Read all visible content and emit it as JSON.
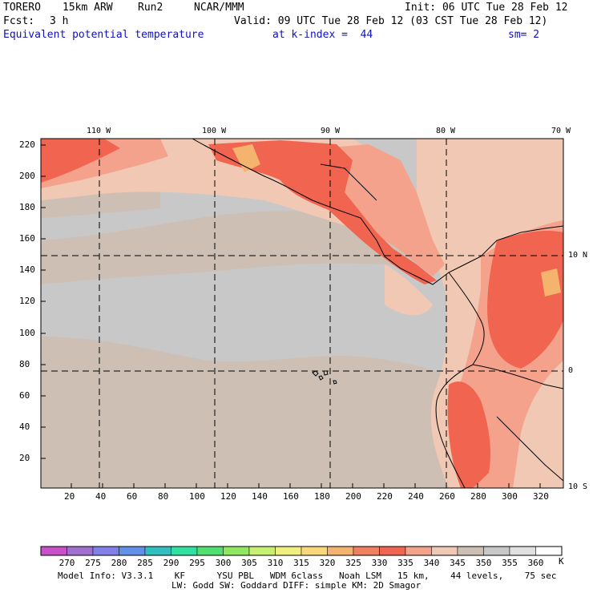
{
  "header": {
    "model": "TORERO",
    "resolution": "15km ARW",
    "run": "Run2",
    "org": "NCAR/MMM",
    "init": "Init: 06 UTC Tue 28 Feb 12",
    "fcst_label": "Fcst:",
    "fcst_value": "3 h",
    "valid": "Valid: 09 UTC Tue 28 Feb 12 (03 CST Tue 28 Feb 12)",
    "field": "Equivalent potential temperature",
    "level": "at k-index =  44",
    "smoothing": "sm= 2"
  },
  "map": {
    "top_lon_labels": [
      "110 W",
      "100 W",
      "90 W",
      "80 W",
      "70 W"
    ],
    "right_lat_labels": [
      "10 N",
      "0",
      "10 S"
    ],
    "y_grid_labels": [
      "220",
      "200",
      "180",
      "160",
      "140",
      "120",
      "100",
      "80",
      "60",
      "40",
      "20"
    ],
    "x_grid_labels": [
      "20",
      "40",
      "60",
      "80",
      "100",
      "120",
      "140",
      "160",
      "180",
      "200",
      "220",
      "240",
      "260",
      "280",
      "300",
      "320"
    ],
    "colors": {
      "ocean_light": "#c8c8c8",
      "ocean_tan": "#cdbfb3",
      "land_peach": "#f0c8b4",
      "warm_salmon": "#f5a28c",
      "hot_red": "#f06450",
      "hottest_orange": "#f5b46e"
    }
  },
  "colorbar": {
    "labels": [
      "270",
      "275",
      "280",
      "285",
      "290",
      "295",
      "300",
      "305",
      "310",
      "315",
      "320",
      "325",
      "330",
      "335",
      "340",
      "345",
      "350",
      "355",
      "360"
    ],
    "unit": "K",
    "colors": [
      "#c850c8",
      "#a070d0",
      "#8080e8",
      "#6090e8",
      "#30c0c0",
      "#30e0a0",
      "#50e070",
      "#90e860",
      "#c8f070",
      "#f0f080",
      "#f8d878",
      "#f5b46e",
      "#f08060",
      "#f06450",
      "#f5a28c",
      "#f0c8b4",
      "#cdbfb3",
      "#c8c8c8",
      "#e0e0e0",
      "#ffffff"
    ]
  },
  "footer": {
    "line1": "Model Info: V3.3.1    KF      YSU PBL   WDM 6class   Noah LSM   15 km,    44 levels,    75 sec",
    "line2": "LW: Godd SW: Goddard DIFF: simple KM: 2D Smagor"
  }
}
